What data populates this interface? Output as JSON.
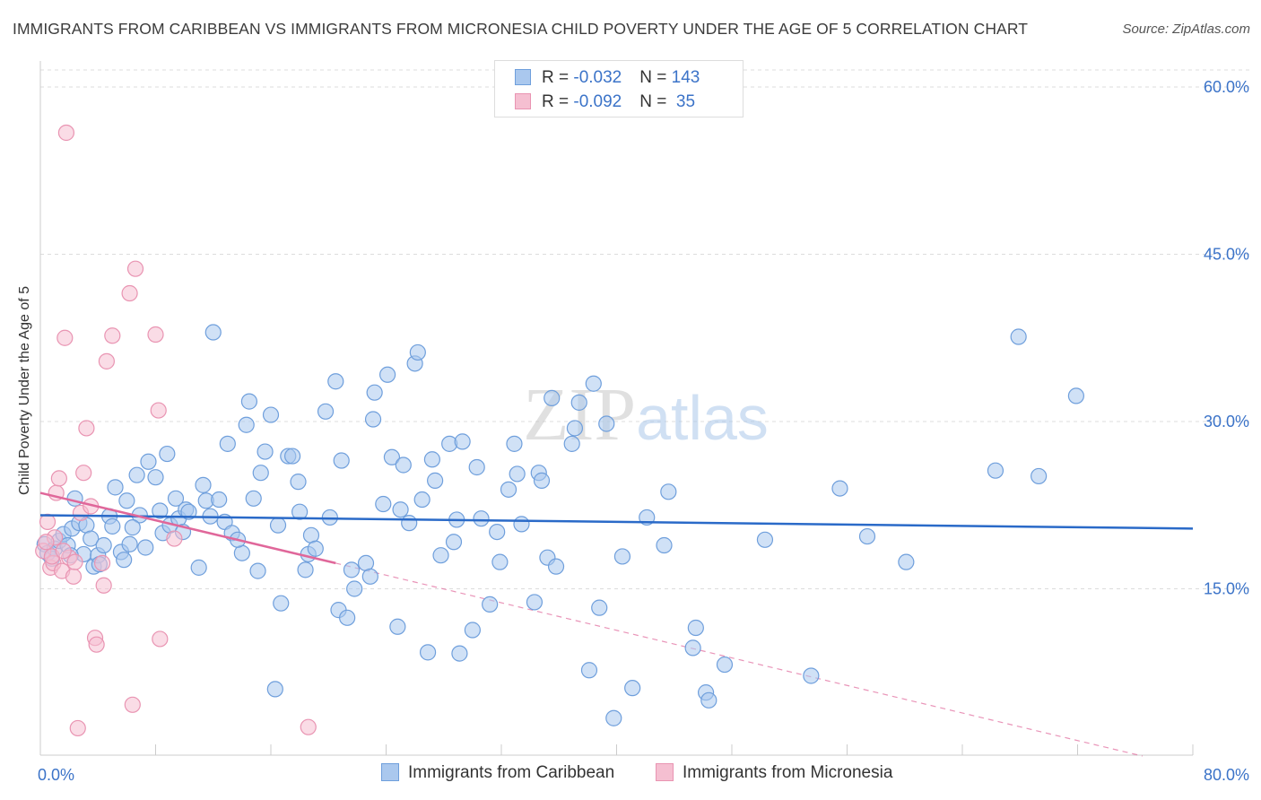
{
  "title": "IMMIGRANTS FROM CARIBBEAN VS IMMIGRANTS FROM MICRONESIA CHILD POVERTY UNDER THE AGE OF 5 CORRELATION CHART",
  "source": "Source: ZipAtlas.com",
  "watermark": "ZIPatlas",
  "colors": {
    "caribbean_fill": "#aac8ee",
    "caribbean_stroke": "#6f9fdc",
    "caribbean_line": "#2a6ac8",
    "micronesia_fill": "#f5bfd1",
    "micronesia_stroke": "#e994b2",
    "micronesia_line": "#e0679a",
    "axis_label": "#3b73c8",
    "grid": "#dcdcdc"
  },
  "legend": {
    "rows": [
      {
        "r_label": "R = ",
        "r_value": "-0.032",
        "n_label": "N = ",
        "n_value": "143"
      },
      {
        "r_label": "R = ",
        "r_value": "-0.092",
        "n_label": "N = ",
        "n_value": " 35"
      }
    ]
  },
  "chart_data": {
    "type": "scatter",
    "title": "IMMIGRANTS FROM CARIBBEAN VS IMMIGRANTS FROM MICRONESIA CHILD POVERTY UNDER THE AGE OF 5 CORRELATION CHART",
    "xlabel": "",
    "ylabel": "Child Poverty Under the Age of 5",
    "xlim": [
      0,
      80
    ],
    "ylim": [
      0,
      60
    ],
    "x_tick_labels": [
      "0.0%",
      "80.0%"
    ],
    "y_tick_labels": [
      "15.0%",
      "30.0%",
      "45.0%",
      "60.0%"
    ],
    "y_tick_values": [
      15,
      30,
      45,
      60
    ],
    "grid": true,
    "legend_position": "top-center",
    "series": [
      {
        "name": "Immigrants from Caribbean",
        "r": -0.032,
        "n": 143,
        "trend": {
          "x": [
            0,
            80
          ],
          "y": [
            21.6,
            20.4
          ]
        },
        "points": [
          [
            0.3,
            19.0
          ],
          [
            0.5,
            18.2
          ],
          [
            0.8,
            17.7
          ],
          [
            1.0,
            18.6
          ],
          [
            1.3,
            19.3
          ],
          [
            1.6,
            19.9
          ],
          [
            1.9,
            18.9
          ],
          [
            2.2,
            20.4
          ],
          [
            2.4,
            23.1
          ],
          [
            2.7,
            20.9
          ],
          [
            3.0,
            18.1
          ],
          [
            3.2,
            20.7
          ],
          [
            3.5,
            19.5
          ],
          [
            3.7,
            17.0
          ],
          [
            4.0,
            18.0
          ],
          [
            4.1,
            17.2
          ],
          [
            4.4,
            18.9
          ],
          [
            4.8,
            21.5
          ],
          [
            5.0,
            20.6
          ],
          [
            5.2,
            24.1
          ],
          [
            5.6,
            18.3
          ],
          [
            5.8,
            17.6
          ],
          [
            6.0,
            22.9
          ],
          [
            6.2,
            19.0
          ],
          [
            6.7,
            25.2
          ],
          [
            6.9,
            21.6
          ],
          [
            7.3,
            18.7
          ],
          [
            7.5,
            26.4
          ],
          [
            8.0,
            25.0
          ],
          [
            8.3,
            22.0
          ],
          [
            8.5,
            20.0
          ],
          [
            8.8,
            27.1
          ],
          [
            9.0,
            20.7
          ],
          [
            9.4,
            23.1
          ],
          [
            9.6,
            21.3
          ],
          [
            9.9,
            20.1
          ],
          [
            10.1,
            22.1
          ],
          [
            10.3,
            21.9
          ],
          [
            11.0,
            16.9
          ],
          [
            11.3,
            24.3
          ],
          [
            11.5,
            22.9
          ],
          [
            11.8,
            21.5
          ],
          [
            12.0,
            38.0
          ],
          [
            12.4,
            23.0
          ],
          [
            12.8,
            21.0
          ],
          [
            13.0,
            28.0
          ],
          [
            13.3,
            20.0
          ],
          [
            14.0,
            18.2
          ],
          [
            14.3,
            29.7
          ],
          [
            14.5,
            31.8
          ],
          [
            14.8,
            23.1
          ],
          [
            15.1,
            16.6
          ],
          [
            15.3,
            25.4
          ],
          [
            15.6,
            27.3
          ],
          [
            16.0,
            30.6
          ],
          [
            16.3,
            6.0
          ],
          [
            16.5,
            20.7
          ],
          [
            16.7,
            13.7
          ],
          [
            17.2,
            26.9
          ],
          [
            17.5,
            26.9
          ],
          [
            17.9,
            24.6
          ],
          [
            18.0,
            21.9
          ],
          [
            18.4,
            16.7
          ],
          [
            18.6,
            18.1
          ],
          [
            18.8,
            19.8
          ],
          [
            19.1,
            18.6
          ],
          [
            19.8,
            30.9
          ],
          [
            20.1,
            21.4
          ],
          [
            20.5,
            33.6
          ],
          [
            20.7,
            13.1
          ],
          [
            20.9,
            26.5
          ],
          [
            21.3,
            12.4
          ],
          [
            21.6,
            16.7
          ],
          [
            21.8,
            15.0
          ],
          [
            22.6,
            17.3
          ],
          [
            23.1,
            30.2
          ],
          [
            23.2,
            32.6
          ],
          [
            23.8,
            22.6
          ],
          [
            24.1,
            34.2
          ],
          [
            24.4,
            26.8
          ],
          [
            24.8,
            11.6
          ],
          [
            25.0,
            22.1
          ],
          [
            25.2,
            26.1
          ],
          [
            25.6,
            20.9
          ],
          [
            26.0,
            35.2
          ],
          [
            26.2,
            36.2
          ],
          [
            26.5,
            23.0
          ],
          [
            26.9,
            9.3
          ],
          [
            27.2,
            26.6
          ],
          [
            27.4,
            24.7
          ],
          [
            27.8,
            18.0
          ],
          [
            28.4,
            28.0
          ],
          [
            28.7,
            19.2
          ],
          [
            29.1,
            9.2
          ],
          [
            29.3,
            28.2
          ],
          [
            30.0,
            11.3
          ],
          [
            30.3,
            25.9
          ],
          [
            30.6,
            21.3
          ],
          [
            31.2,
            13.6
          ],
          [
            31.7,
            20.1
          ],
          [
            31.9,
            17.4
          ],
          [
            32.5,
            23.9
          ],
          [
            32.9,
            28.0
          ],
          [
            33.1,
            25.3
          ],
          [
            33.4,
            20.8
          ],
          [
            34.3,
            13.8
          ],
          [
            34.6,
            25.4
          ],
          [
            34.8,
            24.7
          ],
          [
            35.2,
            17.8
          ],
          [
            35.5,
            32.1
          ],
          [
            35.8,
            17.0
          ],
          [
            36.9,
            28.0
          ],
          [
            37.1,
            29.4
          ],
          [
            37.4,
            31.7
          ],
          [
            38.1,
            7.7
          ],
          [
            38.4,
            33.4
          ],
          [
            38.8,
            13.3
          ],
          [
            39.3,
            29.8
          ],
          [
            39.8,
            3.4
          ],
          [
            40.4,
            17.9
          ],
          [
            41.1,
            6.1
          ],
          [
            42.1,
            21.4
          ],
          [
            43.3,
            18.9
          ],
          [
            43.6,
            23.7
          ],
          [
            45.3,
            9.7
          ],
          [
            45.5,
            11.5
          ],
          [
            46.2,
            5.7
          ],
          [
            46.4,
            5.0
          ],
          [
            47.5,
            8.2
          ],
          [
            50.3,
            19.4
          ],
          [
            53.5,
            7.2
          ],
          [
            55.5,
            24.0
          ],
          [
            57.4,
            19.7
          ],
          [
            60.1,
            17.4
          ],
          [
            66.3,
            25.6
          ],
          [
            67.9,
            37.6
          ],
          [
            69.3,
            25.1
          ],
          [
            71.9,
            32.3
          ],
          [
            2.1,
            18.0
          ],
          [
            6.4,
            20.5
          ],
          [
            13.7,
            19.4
          ],
          [
            22.9,
            16.1
          ],
          [
            28.9,
            21.2
          ]
        ]
      },
      {
        "name": "Immigrants from Micronesia",
        "r": -0.092,
        "n": 35,
        "trend": {
          "x": [
            0,
            20.5
          ],
          "y": [
            23.6,
            17.3
          ]
        },
        "trend_extension": {
          "x": [
            20.5,
            76.5
          ],
          "y": [
            17.3,
            0
          ]
        },
        "points": [
          [
            0.2,
            18.4
          ],
          [
            0.5,
            21.0
          ],
          [
            0.7,
            16.9
          ],
          [
            0.9,
            17.3
          ],
          [
            1.1,
            23.6
          ],
          [
            1.3,
            24.9
          ],
          [
            1.5,
            16.6
          ],
          [
            1.7,
            37.5
          ],
          [
            1.8,
            55.9
          ],
          [
            2.0,
            17.8
          ],
          [
            2.3,
            16.1
          ],
          [
            2.6,
            2.5
          ],
          [
            2.8,
            21.8
          ],
          [
            3.0,
            25.4
          ],
          [
            3.2,
            29.4
          ],
          [
            3.5,
            22.4
          ],
          [
            3.8,
            10.6
          ],
          [
            3.9,
            10.0
          ],
          [
            4.3,
            17.3
          ],
          [
            4.4,
            15.3
          ],
          [
            4.6,
            35.4
          ],
          [
            5.0,
            37.7
          ],
          [
            6.2,
            41.5
          ],
          [
            6.4,
            4.6
          ],
          [
            6.6,
            43.7
          ],
          [
            8.0,
            37.8
          ],
          [
            8.2,
            31.0
          ],
          [
            8.3,
            10.5
          ],
          [
            9.3,
            19.5
          ],
          [
            18.6,
            2.6
          ],
          [
            1.0,
            19.6
          ],
          [
            0.4,
            19.2
          ],
          [
            2.4,
            17.4
          ],
          [
            0.8,
            17.9
          ],
          [
            1.6,
            18.4
          ]
        ]
      }
    ]
  },
  "bottom_legend": [
    "Immigrants from Caribbean",
    "Immigrants from Micronesia"
  ]
}
